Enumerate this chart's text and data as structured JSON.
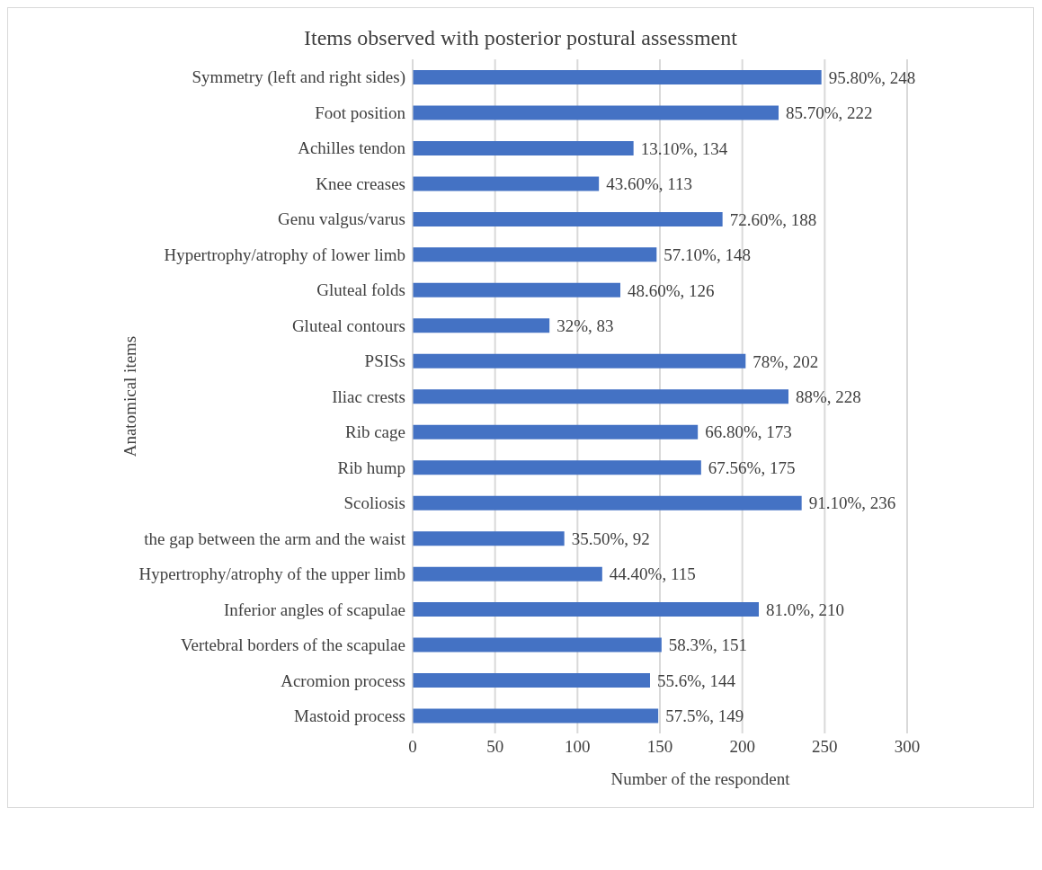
{
  "chart_data": {
    "type": "bar",
    "orientation": "horizontal",
    "title": "Items observed with posterior postural assessment",
    "xlabel": "Number of the respondent",
    "ylabel": "Anatomical items",
    "categories": [
      "Symmetry (left and right sides)",
      "Foot position",
      "Achilles tendon",
      "Knee creases",
      "Genu valgus/varus",
      "Hypertrophy/atrophy of lower limb",
      "Gluteal folds",
      "Gluteal contours",
      "PSISs",
      "Iliac crests",
      "Rib cage",
      "Rib hump",
      "Scoliosis",
      "the gap between the arm and the waist",
      "Hypertrophy/atrophy of the upper limb",
      "Inferior angles of scapulae",
      "Vertebral borders of the scapulae",
      "Acromion process",
      "Mastoid process"
    ],
    "values": [
      248,
      222,
      134,
      113,
      188,
      148,
      126,
      83,
      202,
      228,
      173,
      175,
      236,
      92,
      115,
      210,
      151,
      144,
      149
    ],
    "value_labels": [
      "95.80%, 248",
      "85.70%, 222",
      "13.10%, 134",
      "43.60%, 113",
      "72.60%, 188",
      "57.10%, 148",
      "48.60%, 126",
      "32%, 83",
      "78%, 202",
      "88%, 228",
      "66.80%, 173",
      "67.56%, 175",
      "91.10%, 236",
      "35.50%, 92",
      "44.40%, 115",
      "81.0%, 210",
      "58.3%, 151",
      "55.6%, 144",
      "57.5%, 149"
    ],
    "color": "#4472c4",
    "xlim": [
      0,
      300
    ],
    "xticks": [
      0,
      50,
      100,
      150,
      200,
      250,
      300
    ],
    "grid": "x"
  }
}
